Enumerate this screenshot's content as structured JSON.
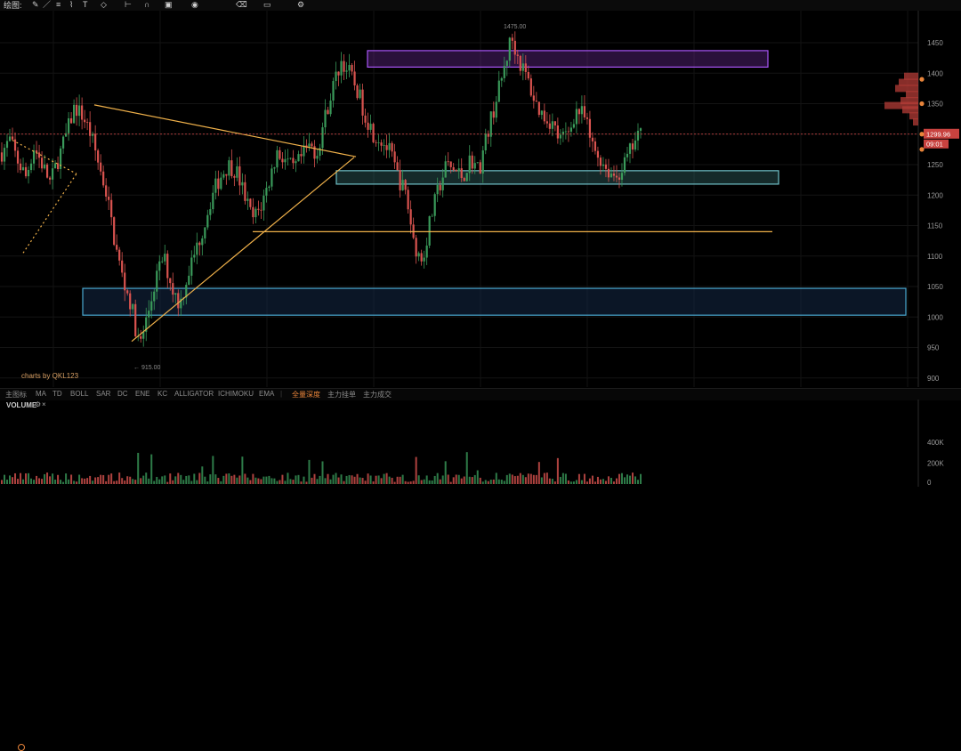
{
  "toolbar": {
    "label": "绘图:",
    "icons": [
      "pencil-icon",
      "line-icon",
      "fib-icon",
      "brush-icon",
      "text-icon",
      "shape-icon",
      "ruler-icon",
      "magnet-icon",
      "lock-icon",
      "eye-icon",
      "delete-icon",
      "screenshot-icon",
      "settings-icon"
    ]
  },
  "watermark": "charts by QKL123",
  "price_marker": {
    "price": "1299.96",
    "countdown": "09:01"
  },
  "annotations": {
    "high": "1475.00",
    "low": "← 915.00"
  },
  "indicator_bar": {
    "items": [
      "主图标",
      "MA",
      "TD",
      "BOLL",
      "SAR",
      "DC",
      "ENE",
      "KC",
      "ALLIGATOR",
      "ICHIMOKU",
      "EMA",
      "|",
      "全量深度",
      "主力挂单",
      "主力成交"
    ],
    "active": "全量深度"
  },
  "volume": {
    "title": "VOLUME",
    "gear": "⚙",
    "close": "×",
    "axis_labels": [
      "400K",
      "200K",
      "0"
    ],
    "axis_values": [
      400000,
      200000,
      0
    ]
  },
  "colors": {
    "up": "#3a9a5a",
    "down": "#d9534f",
    "trend": "#f0b14a",
    "zone_purple": "#a855f7",
    "zone_cyan": "#6fc0c8",
    "zone_blue": "#4aa8d0",
    "price_line": "#e04a4a"
  },
  "chart_data": {
    "type": "candlestick",
    "price_axis": {
      "ticks": [
        1450,
        1400,
        1350,
        1300,
        1250,
        1200,
        1150,
        1100,
        1050,
        1000,
        950,
        900
      ],
      "ylim": [
        880,
        1500
      ]
    },
    "high": 1475.0,
    "low": 915.0,
    "last": 1299.96,
    "zones": [
      {
        "name": "purple-resistance",
        "low": 1410,
        "high": 1437
      },
      {
        "name": "cyan-support",
        "low": 1218,
        "high": 1240
      },
      {
        "name": "blue-support",
        "low": 1003,
        "high": 1047
      }
    ],
    "horizontal_lines": [
      1140
    ],
    "close_path": [
      1270,
      1290,
      1255,
      1230,
      1280,
      1250,
      1220,
      1260,
      1300,
      1345,
      1330,
      1300,
      1250,
      1200,
      1120,
      1060,
      1020,
      950,
      1000,
      1060,
      1100,
      1050,
      1020,
      1070,
      1110,
      1150,
      1200,
      1230,
      1250,
      1240,
      1200,
      1160,
      1180,
      1220,
      1270,
      1260,
      1240,
      1260,
      1280,
      1270,
      1330,
      1380,
      1420,
      1400,
      1370,
      1330,
      1300,
      1290,
      1270,
      1230,
      1200,
      1120,
      1090,
      1160,
      1210,
      1250,
      1240,
      1230,
      1260,
      1240,
      1300,
      1350,
      1400,
      1460,
      1420,
      1390,
      1350,
      1330,
      1320,
      1290,
      1300,
      1340,
      1330,
      1280,
      1260,
      1240,
      1230,
      1250,
      1280,
      1300
    ]
  }
}
